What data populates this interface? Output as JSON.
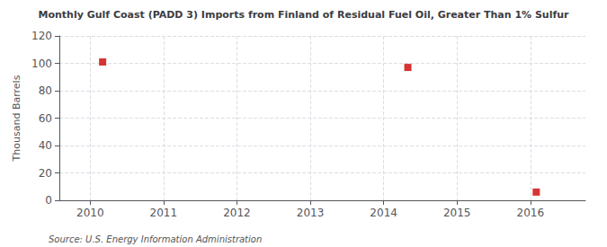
{
  "chart_data": {
    "type": "scatter",
    "title": "Monthly Gulf Coast (PADD 3) Imports from Finland of Residual Fuel Oil, Greater Than 1% Sulfur",
    "ylabel": "Thousand Barrels",
    "annotations": [
      "Source: U.S. Energy Information Administration"
    ],
    "x": [
      2010.17,
      2014.33,
      2016.08
    ],
    "values": [
      101,
      97,
      6
    ],
    "color": "#cc0000",
    "marker": "square",
    "xlim": [
      2009.58,
      2016.75
    ],
    "xticks": [
      2010,
      2011,
      2012,
      2013,
      2014,
      2015,
      2016
    ],
    "ylim": [
      0,
      120
    ],
    "yticks": [
      0,
      20,
      40,
      60,
      80,
      100,
      120
    ],
    "grid": true
  }
}
